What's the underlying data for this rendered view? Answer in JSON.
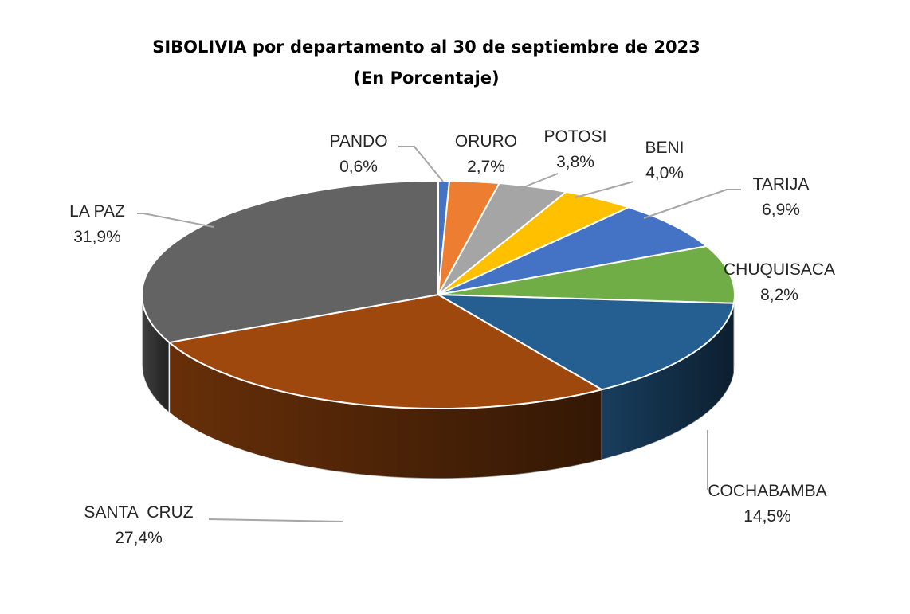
{
  "title": "SIBOLIVIA por departamento al 30 de septiembre de 2023",
  "subtitle": "(En Porcentaje)",
  "chart_data": {
    "type": "pie",
    "title": "SIBOLIVIA por departamento al 30 de septiembre de 2023",
    "subtitle": "(En Porcentaje)",
    "unit": "%",
    "categories": [
      "PANDO",
      "ORURO",
      "POTOSI",
      "BENI",
      "TARIJA",
      "CHUQUISACA",
      "COCHABAMBA",
      "SANTA  CRUZ",
      "LA PAZ"
    ],
    "values": [
      0.6,
      2.7,
      3.8,
      4.0,
      6.9,
      8.2,
      14.5,
      27.4,
      31.9
    ],
    "value_labels": [
      "0,6%",
      "2,7%",
      "3,8%",
      "4,0%",
      "6,9%",
      "8,2%",
      "14,5%",
      "27,4%",
      "31,9%"
    ],
    "colors": [
      "#4472c4",
      "#ed7d31",
      "#a5a5a5",
      "#ffc000",
      "#4472c4",
      "#70ad47",
      "#255e91",
      "#9e480e",
      "#636363"
    ],
    "style": "3d-exploded-free",
    "legend": "none"
  }
}
